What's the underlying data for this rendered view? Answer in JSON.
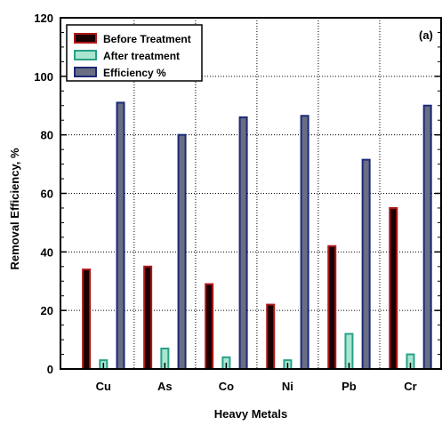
{
  "chart_data": {
    "type": "bar",
    "panel_label": "(a)",
    "xlabel": "Heavy Metals",
    "ylabel": "Removal Efficiency, %",
    "categories": [
      "Cu",
      "As",
      "Co",
      "Ni",
      "Pb",
      "Cr"
    ],
    "ylim": [
      0,
      120
    ],
    "yticks": [
      0,
      20,
      40,
      60,
      80,
      100,
      120
    ],
    "grid": true,
    "legend_position": "top-left",
    "series": [
      {
        "name": "Before Treatment",
        "values": [
          34,
          35,
          29,
          22,
          42,
          55
        ],
        "fill": "#1a0000",
        "stroke": "#b01818"
      },
      {
        "name": "After treatment",
        "values": [
          3,
          7,
          4,
          3,
          12,
          5
        ],
        "fill": "#a8e6d0",
        "stroke": "#2aa088"
      },
      {
        "name": "Efficiency %",
        "values": [
          91,
          80,
          86,
          86.5,
          71.5,
          90
        ],
        "fill": "#6a6e82",
        "stroke": "#1c2a78"
      }
    ]
  }
}
